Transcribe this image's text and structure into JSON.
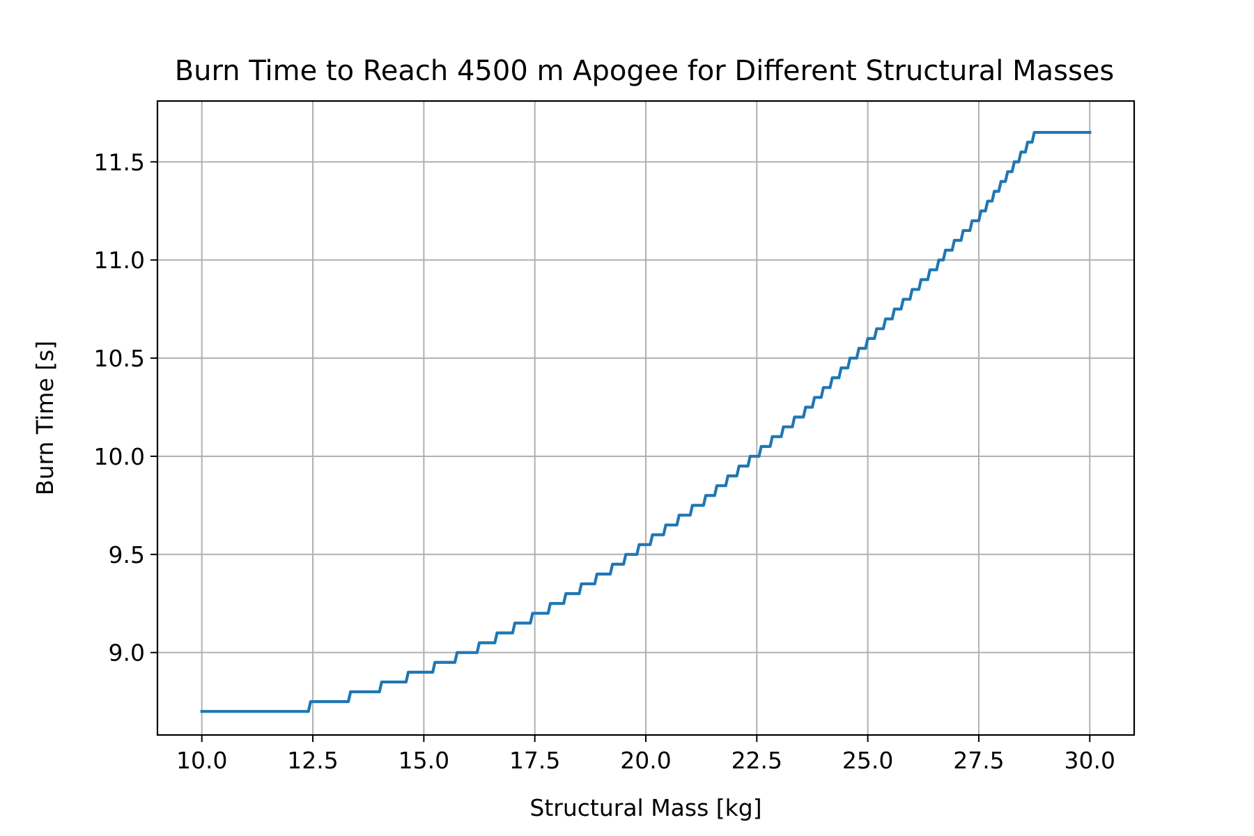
{
  "chart_data": {
    "type": "line",
    "title": "Burn Time to Reach 4500 m Apogee for Different Structural Masses",
    "xlabel": "Structural Mass [kg]",
    "ylabel": "Burn Time [s]",
    "xlim": [
      9.0,
      31.0
    ],
    "ylim": [
      8.58,
      11.81
    ],
    "xticks": [
      10.0,
      12.5,
      15.0,
      17.5,
      20.0,
      22.5,
      25.0,
      27.5,
      30.0
    ],
    "xtick_labels": [
      "10.0",
      "12.5",
      "15.0",
      "17.5",
      "20.0",
      "22.5",
      "25.0",
      "27.5",
      "30.0"
    ],
    "yticks": [
      9.0,
      9.5,
      10.0,
      10.5,
      11.0,
      11.5
    ],
    "ytick_labels": [
      "9.0",
      "9.5",
      "10.0",
      "10.5",
      "11.0",
      "11.5"
    ],
    "grid": true,
    "legend": "none",
    "series": [
      {
        "color": "#1f77b4",
        "step_resolution": 0.05,
        "x": [
          10.0,
          12.4,
          13.3,
          14.0,
          14.6,
          15.2,
          15.7,
          16.2,
          16.6,
          17.0,
          17.4,
          17.8,
          18.15,
          18.5,
          18.85,
          19.2,
          19.5,
          19.8,
          20.1,
          20.4,
          20.7,
          21.0,
          21.3,
          21.55,
          21.8,
          22.05,
          22.3,
          22.55,
          22.8,
          23.05,
          23.3,
          23.55,
          23.75,
          23.95,
          24.15,
          24.35,
          24.55,
          24.75,
          24.95,
          25.15,
          25.35,
          25.55,
          25.75,
          25.95,
          26.15,
          26.35,
          26.55,
          26.7,
          26.9,
          27.1,
          27.3,
          27.5,
          27.65,
          27.8,
          27.95,
          28.1,
          28.25,
          28.4,
          28.55,
          28.7,
          28.85,
          29.0,
          29.15,
          29.3,
          29.45,
          29.6,
          29.75,
          29.9,
          30.0
        ],
        "y": [
          8.7,
          8.75,
          8.8,
          8.85,
          8.9,
          8.95,
          9.0,
          9.05,
          9.1,
          9.15,
          9.2,
          9.25,
          9.3,
          9.35,
          9.4,
          9.45,
          9.5,
          9.55,
          9.6,
          9.65,
          9.7,
          9.75,
          9.8,
          9.85,
          9.9,
          9.95,
          10.0,
          10.05,
          10.1,
          10.15,
          10.2,
          10.25,
          10.3,
          10.35,
          10.4,
          10.45,
          10.5,
          10.55,
          10.6,
          10.65,
          10.7,
          10.75,
          10.8,
          10.85,
          10.9,
          10.95,
          11.0,
          11.05,
          11.1,
          11.15,
          11.2,
          11.25,
          11.3,
          11.35,
          11.4,
          11.45,
          11.5,
          11.55,
          11.6,
          11.65,
          11.65,
          11.65,
          11.65,
          11.65,
          11.65,
          11.65,
          11.65,
          11.65,
          11.65
        ]
      }
    ]
  }
}
